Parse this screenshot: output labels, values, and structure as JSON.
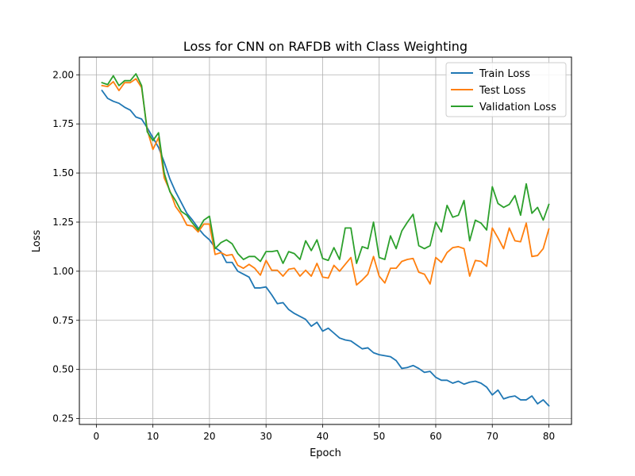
{
  "chart_data": {
    "type": "line",
    "title": "Loss for CNN on RAFDB with Class Weighting",
    "xlabel": "Epoch",
    "ylabel": "Loss",
    "xlim": [
      -3,
      84
    ],
    "ylim": [
      0.22,
      2.09
    ],
    "xticks": [
      0,
      10,
      20,
      30,
      40,
      50,
      60,
      70,
      80
    ],
    "yticks": [
      0.25,
      0.5,
      0.75,
      1.0,
      1.25,
      1.5,
      1.75,
      2.0
    ],
    "ytick_labels": [
      "0.25",
      "0.50",
      "0.75",
      "1.00",
      "1.25",
      "1.50",
      "1.75",
      "2.00"
    ],
    "grid": true,
    "legend_position": "top-right",
    "x": [
      1,
      2,
      3,
      4,
      5,
      6,
      7,
      8,
      9,
      10,
      11,
      12,
      13,
      14,
      15,
      16,
      17,
      18,
      19,
      20,
      21,
      22,
      23,
      24,
      25,
      26,
      27,
      28,
      29,
      30,
      31,
      32,
      33,
      34,
      35,
      36,
      37,
      38,
      39,
      40,
      41,
      42,
      43,
      44,
      45,
      46,
      47,
      48,
      49,
      50,
      51,
      52,
      53,
      54,
      55,
      56,
      57,
      58,
      59,
      60,
      61,
      62,
      63,
      64,
      65,
      66,
      67,
      68,
      69,
      70,
      71,
      72,
      73,
      74,
      75,
      76,
      77,
      78,
      79,
      80
    ],
    "series": [
      {
        "name": "Train Loss",
        "color": "#1f77b4",
        "values": [
          1.92,
          1.88,
          1.865,
          1.855,
          1.835,
          1.82,
          1.785,
          1.775,
          1.73,
          1.68,
          1.63,
          1.555,
          1.47,
          1.405,
          1.35,
          1.295,
          1.26,
          1.22,
          1.185,
          1.16,
          1.12,
          1.1,
          1.045,
          1.045,
          1.0,
          0.985,
          0.97,
          0.915,
          0.915,
          0.92,
          0.88,
          0.835,
          0.84,
          0.805,
          0.785,
          0.77,
          0.755,
          0.72,
          0.74,
          0.695,
          0.71,
          0.685,
          0.66,
          0.65,
          0.645,
          0.625,
          0.605,
          0.61,
          0.585,
          0.575,
          0.57,
          0.565,
          0.545,
          0.505,
          0.51,
          0.52,
          0.505,
          0.485,
          0.49,
          0.46,
          0.445,
          0.445,
          0.43,
          0.44,
          0.425,
          0.435,
          0.44,
          0.43,
          0.41,
          0.37,
          0.395,
          0.35,
          0.36,
          0.365,
          0.345,
          0.345,
          0.365,
          0.325,
          0.345,
          0.315
        ]
      },
      {
        "name": "Test Loss",
        "color": "#ff7f0e",
        "values": [
          1.945,
          1.94,
          1.965,
          1.92,
          1.96,
          1.96,
          1.98,
          1.935,
          1.72,
          1.62,
          1.68,
          1.475,
          1.41,
          1.33,
          1.29,
          1.235,
          1.23,
          1.2,
          1.24,
          1.24,
          1.085,
          1.095,
          1.08,
          1.085,
          1.03,
          1.015,
          1.035,
          1.015,
          0.98,
          1.055,
          1.005,
          1.005,
          0.975,
          1.01,
          1.015,
          0.975,
          1.005,
          0.975,
          1.04,
          0.97,
          0.965,
          1.03,
          1.0,
          1.035,
          1.07,
          0.93,
          0.955,
          0.985,
          1.075,
          0.975,
          0.94,
          1.015,
          1.015,
          1.05,
          1.06,
          1.065,
          0.995,
          0.985,
          0.935,
          1.07,
          1.045,
          1.095,
          1.12,
          1.125,
          1.115,
          0.975,
          1.055,
          1.05,
          1.025,
          1.22,
          1.17,
          1.115,
          1.22,
          1.155,
          1.15,
          1.245,
          1.075,
          1.08,
          1.115,
          1.215
        ]
      },
      {
        "name": "Validation Loss",
        "color": "#2ca02c",
        "values": [
          1.96,
          1.95,
          1.995,
          1.945,
          1.97,
          1.97,
          2.005,
          1.945,
          1.71,
          1.665,
          1.705,
          1.5,
          1.405,
          1.36,
          1.305,
          1.285,
          1.245,
          1.21,
          1.26,
          1.28,
          1.115,
          1.145,
          1.16,
          1.14,
          1.09,
          1.06,
          1.075,
          1.075,
          1.05,
          1.1,
          1.1,
          1.105,
          1.04,
          1.1,
          1.09,
          1.06,
          1.155,
          1.105,
          1.16,
          1.065,
          1.055,
          1.12,
          1.06,
          1.22,
          1.22,
          1.04,
          1.125,
          1.115,
          1.25,
          1.07,
          1.06,
          1.18,
          1.115,
          1.205,
          1.25,
          1.29,
          1.13,
          1.115,
          1.13,
          1.25,
          1.2,
          1.335,
          1.275,
          1.285,
          1.36,
          1.155,
          1.26,
          1.245,
          1.21,
          1.43,
          1.345,
          1.325,
          1.34,
          1.385,
          1.285,
          1.445,
          1.295,
          1.325,
          1.26,
          1.34
        ]
      }
    ]
  }
}
